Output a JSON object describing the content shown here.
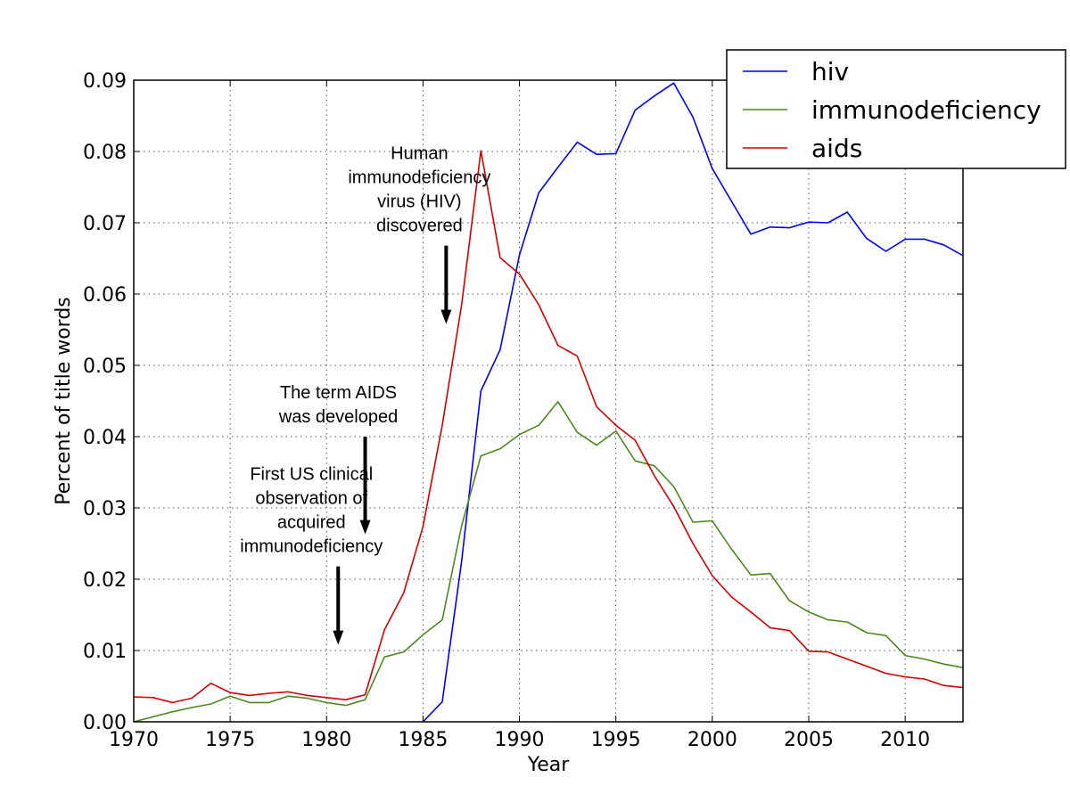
{
  "chart_data": {
    "type": "line",
    "title": "",
    "xlabel": "Year",
    "ylabel": "Percent of title words",
    "xlim": [
      1970,
      2013
    ],
    "ylim": [
      0,
      0.09
    ],
    "grid": true,
    "legend_position": "top-right",
    "x_ticks": [
      "1970",
      "1975",
      "1980",
      "1985",
      "1990",
      "1995",
      "2000",
      "2005",
      "2010"
    ],
    "y_ticks": [
      "0.00",
      "0.01",
      "0.02",
      "0.03",
      "0.04",
      "0.05",
      "0.06",
      "0.07",
      "0.08",
      "0.09"
    ],
    "series": [
      {
        "name": "hiv",
        "color": "#0000ff",
        "x": [
          1985,
          1986,
          1987,
          1988,
          1989,
          1990,
          1991,
          1992,
          1993,
          1994,
          1995,
          1996,
          1997,
          1998,
          1999,
          2000,
          2001,
          2002,
          2003,
          2004,
          2005,
          2006,
          2007,
          2008,
          2009,
          2010,
          2011,
          2012,
          2013
        ],
        "y": [
          0.0,
          0.0028,
          0.0225,
          0.0464,
          0.0522,
          0.0655,
          0.0742,
          0.0778,
          0.0813,
          0.0796,
          0.0797,
          0.0858,
          0.0878,
          0.0896,
          0.0848,
          0.0776,
          0.073,
          0.0684,
          0.0694,
          0.0693,
          0.0701,
          0.07,
          0.0715,
          0.0678,
          0.066,
          0.0677,
          0.0677,
          0.0669,
          0.0654
        ]
      },
      {
        "name": "immunodeficiency",
        "color": "#4b8a1f",
        "x": [
          1970,
          1971,
          1972,
          1973,
          1974,
          1975,
          1976,
          1977,
          1978,
          1979,
          1980,
          1981,
          1982,
          1983,
          1984,
          1985,
          1986,
          1987,
          1988,
          1989,
          1990,
          1991,
          1992,
          1993,
          1994,
          1995,
          1996,
          1997,
          1998,
          1999,
          2000,
          2001,
          2002,
          2003,
          2004,
          2005,
          2006,
          2007,
          2008,
          2009,
          2010,
          2011,
          2012,
          2013
        ],
        "y": [
          0.0,
          0.0007,
          0.0014,
          0.002,
          0.0025,
          0.0036,
          0.0027,
          0.0027,
          0.0036,
          0.0033,
          0.0027,
          0.0023,
          0.0031,
          0.0091,
          0.0098,
          0.0122,
          0.0143,
          0.0275,
          0.0373,
          0.0383,
          0.0403,
          0.0416,
          0.0449,
          0.0406,
          0.0388,
          0.0408,
          0.0366,
          0.0359,
          0.033,
          0.028,
          0.0282,
          0.0242,
          0.0206,
          0.0208,
          0.017,
          0.0154,
          0.0143,
          0.014,
          0.0125,
          0.0121,
          0.0093,
          0.0088,
          0.0081,
          0.0076
        ]
      },
      {
        "name": "aids",
        "color": "#d40000",
        "x": [
          1970,
          1971,
          1972,
          1973,
          1974,
          1975,
          1976,
          1977,
          1978,
          1979,
          1980,
          1981,
          1982,
          1983,
          1984,
          1985,
          1986,
          1987,
          1988,
          1989,
          1990,
          1991,
          1992,
          1993,
          1994,
          1995,
          1996,
          1997,
          1998,
          1999,
          2000,
          2001,
          2002,
          2003,
          2004,
          2005,
          2006,
          2007,
          2008,
          2009,
          2010,
          2011,
          2012,
          2013
        ],
        "y": [
          0.0035,
          0.0034,
          0.0027,
          0.0033,
          0.0054,
          0.0041,
          0.0037,
          0.004,
          0.0042,
          0.0037,
          0.0034,
          0.0031,
          0.0038,
          0.0129,
          0.0181,
          0.0274,
          0.0416,
          0.0585,
          0.0801,
          0.0651,
          0.0628,
          0.0585,
          0.0528,
          0.0513,
          0.0442,
          0.0416,
          0.0395,
          0.0345,
          0.0302,
          0.025,
          0.0205,
          0.0175,
          0.0154,
          0.0132,
          0.0128,
          0.0099,
          0.0098,
          0.0088,
          0.0078,
          0.0068,
          0.0063,
          0.006,
          0.0051,
          0.0048
        ]
      }
    ],
    "annotations": [
      {
        "lines": [
          "Human",
          "immunodeficiency",
          "virus (HIV)",
          "discovered"
        ],
        "arrow_x": 1986.2,
        "arrow_from_y": 0.0668,
        "arrow_to_y": 0.0558
      },
      {
        "lines": [
          "The term AIDS",
          "was developed"
        ],
        "arrow_x": 1982.0,
        "arrow_from_y": 0.04,
        "arrow_to_y": 0.0263
      },
      {
        "lines": [
          "First US clinical",
          "observation of",
          "acquired",
          "immunodeficiency"
        ],
        "arrow_x": 1980.6,
        "arrow_from_y": 0.0218,
        "arrow_to_y": 0.0108
      }
    ]
  }
}
